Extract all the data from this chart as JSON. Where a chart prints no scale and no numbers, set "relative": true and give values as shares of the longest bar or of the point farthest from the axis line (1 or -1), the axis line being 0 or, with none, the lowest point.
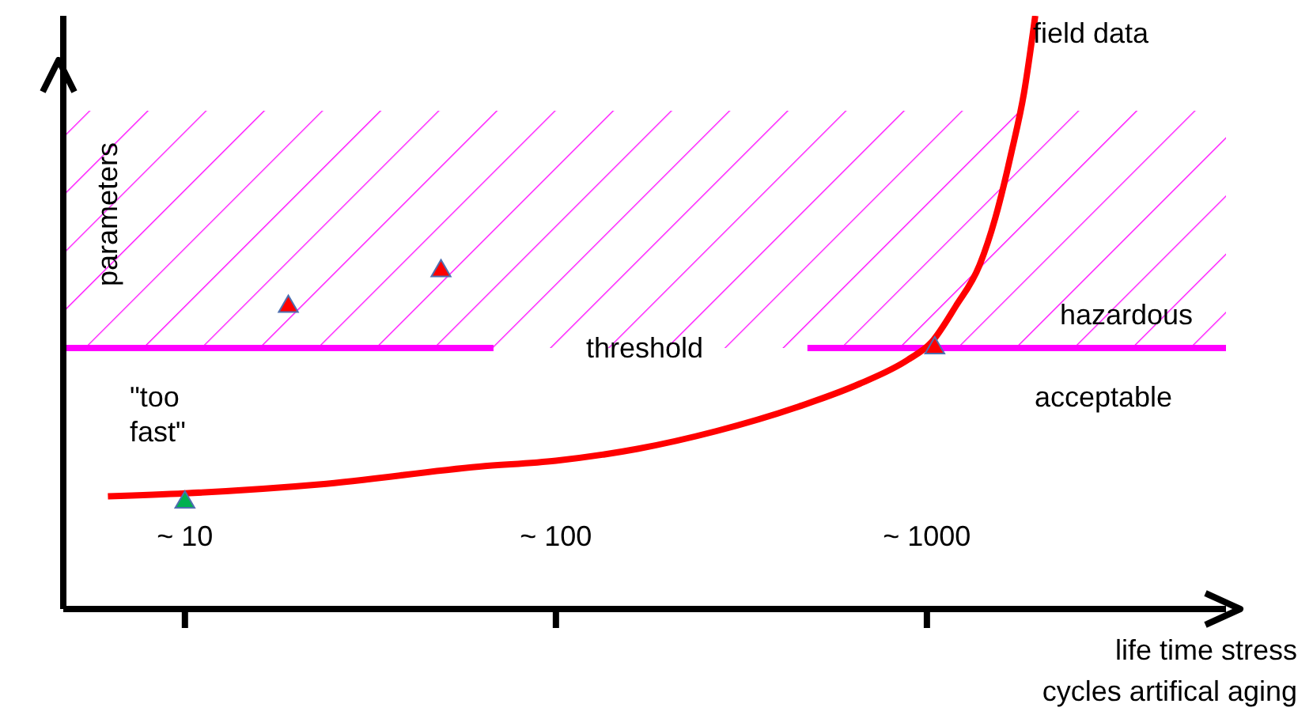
{
  "chart_data": {
    "type": "line",
    "relative": true,
    "log": "x",
    "xlabel": "life time stress\ncycles artifical aging",
    "ylabel": "parameters",
    "xlim": [
      4.7,
      6400
    ],
    "xticks": [
      {
        "value": 10,
        "label": "~ 10"
      },
      {
        "value": 100,
        "label": "~ 100"
      },
      {
        "value": 1000,
        "label": "~ 1000"
      }
    ],
    "tick_labels": "x",
    "grid": false,
    "legend": false,
    "series": [
      {
        "color": "#ff0000",
        "marker": "none",
        "x": [
          6.2,
          10,
          23,
          62,
          100,
          166,
          271,
          445,
          660,
          888,
          1030,
          1195,
          1387,
          1530,
          1690,
          1827,
          1959
        ],
        "values": [
          0.19,
          0.195,
          0.21,
          0.24,
          0.25,
          0.27,
          0.3,
          0.34,
          0.38,
          0.42,
          0.45,
          0.51,
          0.58,
          0.66,
          0.77,
          0.87,
          1.0
        ]
      },
      {
        "type": "scatter",
        "marker": "triangle",
        "colors": [
          "#ff0000",
          "#ff0000",
          "#ff0000",
          "#00b050"
        ],
        "x": [
          19,
          49,
          1050,
          10
        ],
        "values": [
          0.51,
          0.57,
          0.44,
          0.18
        ]
      }
    ],
    "ref_lines": [
      {
        "axis": "y",
        "value": 0.44,
        "label": "threshold",
        "color": "#ff00ff"
      }
    ],
    "bands": [
      {
        "axis": "y",
        "from": 0.44,
        "to": 0.84,
        "color": "#ff00ff"
      }
    ],
    "annotations": [
      "field data",
      "hazardous",
      "acceptable",
      "\"too\nfast\""
    ]
  }
}
